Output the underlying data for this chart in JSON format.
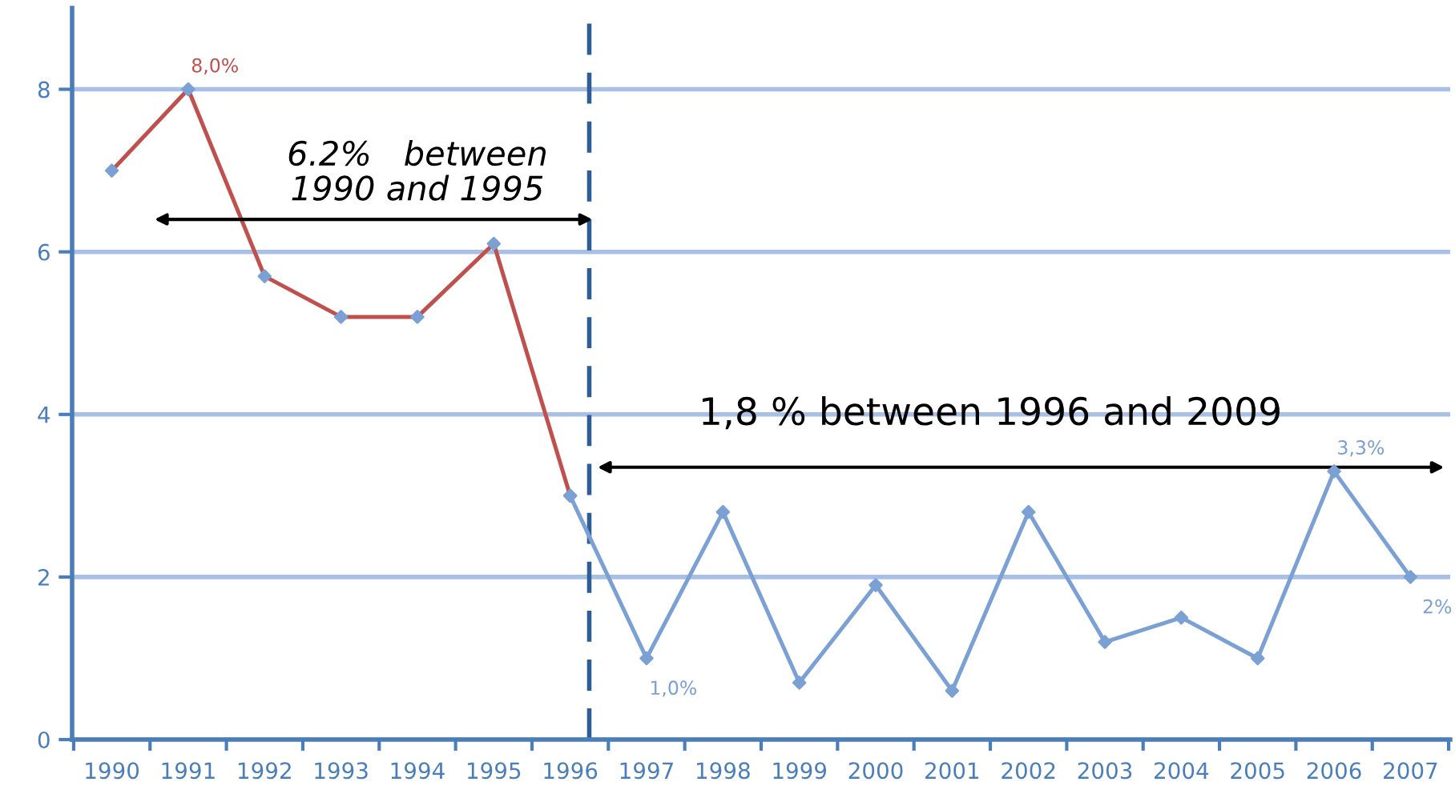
{
  "chart_data": {
    "type": "line",
    "categories": [
      "1990",
      "1991",
      "1992",
      "1993",
      "1994",
      "1995",
      "1996",
      "1997",
      "1998",
      "1999",
      "2000",
      "2001",
      "2002",
      "2003",
      "2004",
      "2005",
      "2006",
      "2007"
    ],
    "series": [
      {
        "color": "#c0504d",
        "values": [
          7,
          8,
          5.7,
          5.2,
          5.2,
          6.1,
          3,
          null,
          null,
          null,
          null,
          null,
          null,
          null,
          null,
          null,
          null,
          null
        ]
      },
      {
        "color": "#7ba0d4",
        "values": [
          null,
          null,
          null,
          null,
          null,
          null,
          3,
          1,
          2.8,
          0.7,
          1.9,
          0.6,
          2.8,
          1.2,
          1.5,
          1,
          3.3,
          2
        ]
      }
    ],
    "ylim": [
      0,
      9
    ],
    "yticks": [
      0,
      2,
      4,
      6,
      8
    ],
    "grid": "y",
    "marker": "diamond",
    "line_style": "solid",
    "legend": false,
    "ref_lines": [
      {
        "axis": "x",
        "value": "1996",
        "color": "#2e5e95",
        "line_style": "dashed"
      }
    ],
    "annotations": [
      {
        "text": "8,0%",
        "x": "1991",
        "y": 8
      },
      {
        "text": "1,0%",
        "x": "1997",
        "y": 1
      },
      {
        "text": "3,3%",
        "x": "2006",
        "y": 3.3
      },
      {
        "text": "2%",
        "x": "2007",
        "y": 2
      },
      "6.2%   between\n1990 and 1995",
      "1,8 % between 1996 and 2009"
    ]
  }
}
